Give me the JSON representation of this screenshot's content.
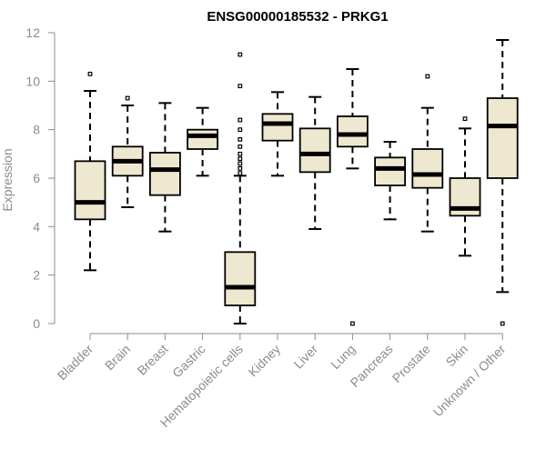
{
  "chart_data": {
    "type": "box",
    "title": "ENSG00000185532 - PRKG1",
    "xlabel": "",
    "ylabel": "Expression",
    "ylim": [
      0,
      12
    ],
    "yticks": [
      0,
      2,
      4,
      6,
      8,
      10,
      12
    ],
    "box_fill": "#efe8d0",
    "line_color": "#000000",
    "axis_color": "#8c8c8c",
    "categories": [
      "Bladder",
      "Brain",
      "Breast",
      "Gastric",
      "Hematopoietic cells",
      "Kidney",
      "Liver",
      "Lung",
      "Pancreas",
      "Prostate",
      "Skin",
      "Unknown / Other"
    ],
    "boxes": [
      {
        "label": "Bladder",
        "whisker_low": 2.2,
        "q1": 4.3,
        "median": 5.0,
        "q3": 6.7,
        "whisker_high": 9.6,
        "outliers": [
          10.3
        ]
      },
      {
        "label": "Brain",
        "whisker_low": 4.8,
        "q1": 6.1,
        "median": 6.7,
        "q3": 7.3,
        "whisker_high": 9.0,
        "outliers": [
          9.3
        ]
      },
      {
        "label": "Breast",
        "whisker_low": 3.8,
        "q1": 5.3,
        "median": 6.35,
        "q3": 7.05,
        "whisker_high": 9.1,
        "outliers": []
      },
      {
        "label": "Gastric",
        "whisker_low": 6.1,
        "q1": 7.2,
        "median": 7.75,
        "q3": 8.0,
        "whisker_high": 8.9,
        "outliers": []
      },
      {
        "label": "Hematopoietic cells",
        "whisker_low": 0.0,
        "q1": 0.75,
        "median": 1.5,
        "q3": 2.95,
        "whisker_high": 6.1,
        "outliers": [
          6.2,
          6.4,
          6.6,
          6.8,
          7.0,
          7.3,
          7.6,
          8.0,
          8.4,
          9.8,
          11.1
        ]
      },
      {
        "label": "Kidney",
        "whisker_low": 6.1,
        "q1": 7.55,
        "median": 8.25,
        "q3": 8.65,
        "whisker_high": 9.55,
        "outliers": []
      },
      {
        "label": "Liver",
        "whisker_low": 3.9,
        "q1": 6.25,
        "median": 7.0,
        "q3": 8.05,
        "whisker_high": 9.35,
        "outliers": []
      },
      {
        "label": "Lung",
        "whisker_low": 6.4,
        "q1": 7.3,
        "median": 7.8,
        "q3": 8.55,
        "whisker_high": 10.5,
        "outliers": [
          0.0
        ]
      },
      {
        "label": "Pancreas",
        "whisker_low": 4.3,
        "q1": 5.7,
        "median": 6.4,
        "q3": 6.85,
        "whisker_high": 7.5,
        "outliers": []
      },
      {
        "label": "Prostate",
        "whisker_low": 3.8,
        "q1": 5.6,
        "median": 6.15,
        "q3": 7.2,
        "whisker_high": 8.9,
        "outliers": [
          10.2
        ]
      },
      {
        "label": "Skin",
        "whisker_low": 2.8,
        "q1": 4.45,
        "median": 4.75,
        "q3": 6.0,
        "whisker_high": 8.05,
        "outliers": [
          8.45
        ]
      },
      {
        "label": "Unknown / Other",
        "whisker_low": 1.3,
        "q1": 6.0,
        "median": 8.15,
        "q3": 9.3,
        "whisker_high": 11.7,
        "outliers": [
          0.0
        ]
      }
    ]
  }
}
